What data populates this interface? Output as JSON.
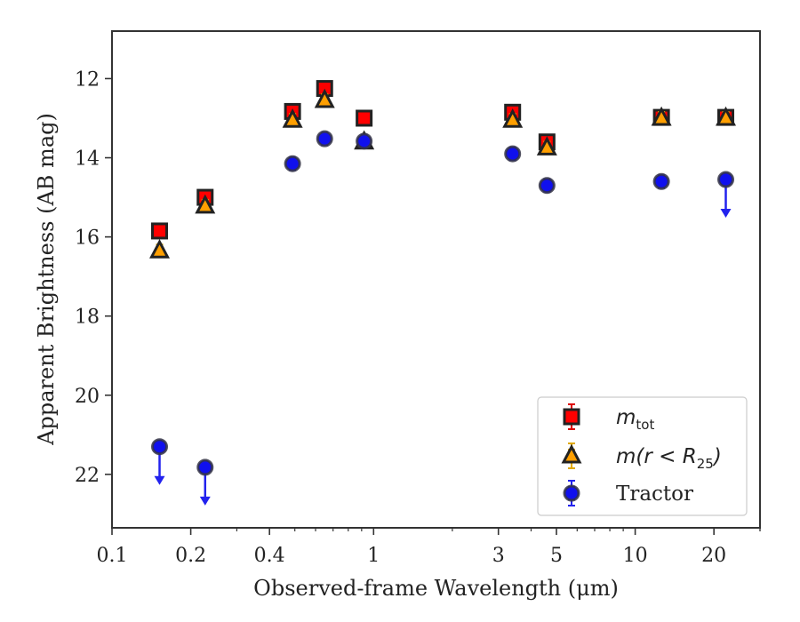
{
  "chart_data": {
    "type": "scatter",
    "title": "",
    "xlabel": "Observed-frame Wavelength (μm)",
    "ylabel": "Apparent Brightness (AB mag)",
    "x_scale": "log",
    "xlim": [
      0.1,
      30
    ],
    "ylim": [
      23.35,
      10.8
    ],
    "y_inverted": true,
    "grid": false,
    "legend_position": "lower-right",
    "x_ticks": [
      {
        "value": 0.1,
        "label": "0.1"
      },
      {
        "value": 0.2,
        "label": "0.2"
      },
      {
        "value": 0.4,
        "label": "0.4"
      },
      {
        "value": 1,
        "label": "1"
      },
      {
        "value": 3,
        "label": "3"
      },
      {
        "value": 5,
        "label": "5"
      },
      {
        "value": 10,
        "label": "10"
      },
      {
        "value": 20,
        "label": "20"
      }
    ],
    "y_ticks": [
      {
        "value": 12,
        "label": "12"
      },
      {
        "value": 14,
        "label": "14"
      },
      {
        "value": 16,
        "label": "16"
      },
      {
        "value": 18,
        "label": "18"
      },
      {
        "value": 20,
        "label": "20"
      },
      {
        "value": 22,
        "label": "22"
      }
    ],
    "series": [
      {
        "legend": "m_tot",
        "legend_main": "m",
        "legend_sub": "tot",
        "marker": "square",
        "color": "#ff0000",
        "edge": "#222222",
        "errcolor": "#dd0000",
        "points": [
          {
            "x": 0.152,
            "y": 15.85
          },
          {
            "x": 0.227,
            "y": 15.0
          },
          {
            "x": 0.49,
            "y": 12.83
          },
          {
            "x": 0.65,
            "y": 12.25
          },
          {
            "x": 0.92,
            "y": 13.0
          },
          {
            "x": 3.4,
            "y": 12.85
          },
          {
            "x": 4.6,
            "y": 13.6
          },
          {
            "x": 12.6,
            "y": 12.98
          },
          {
            "x": 22.2,
            "y": 12.98
          }
        ]
      },
      {
        "legend": "m(r < R_25)",
        "legend_main": "m(r < R",
        "legend_sub": "25",
        "legend_tail": ")",
        "marker": "triangle",
        "color": "#ff9f00",
        "edge": "#222222",
        "errcolor": "#e0a800",
        "points": [
          {
            "x": 0.152,
            "y": 16.35
          },
          {
            "x": 0.227,
            "y": 15.22
          },
          {
            "x": 0.49,
            "y": 13.05
          },
          {
            "x": 0.65,
            "y": 12.55
          },
          {
            "x": 0.92,
            "y": 13.6
          },
          {
            "x": 3.4,
            "y": 13.05
          },
          {
            "x": 4.6,
            "y": 13.75
          },
          {
            "x": 12.6,
            "y": 13.0
          },
          {
            "x": 22.2,
            "y": 13.0
          }
        ]
      },
      {
        "legend": "Tractor",
        "marker": "circle",
        "color": "#1010ee",
        "edge": "#333344",
        "errcolor": "#2222ee",
        "points": [
          {
            "x": 0.152,
            "y": 21.3,
            "upper_limit": true
          },
          {
            "x": 0.227,
            "y": 21.82,
            "upper_limit": true
          },
          {
            "x": 0.49,
            "y": 14.15
          },
          {
            "x": 0.65,
            "y": 13.52
          },
          {
            "x": 0.92,
            "y": 13.58
          },
          {
            "x": 3.4,
            "y": 13.9
          },
          {
            "x": 4.6,
            "y": 14.7
          },
          {
            "x": 12.6,
            "y": 14.6
          },
          {
            "x": 22.2,
            "y": 14.55,
            "upper_limit": true
          }
        ]
      }
    ]
  }
}
